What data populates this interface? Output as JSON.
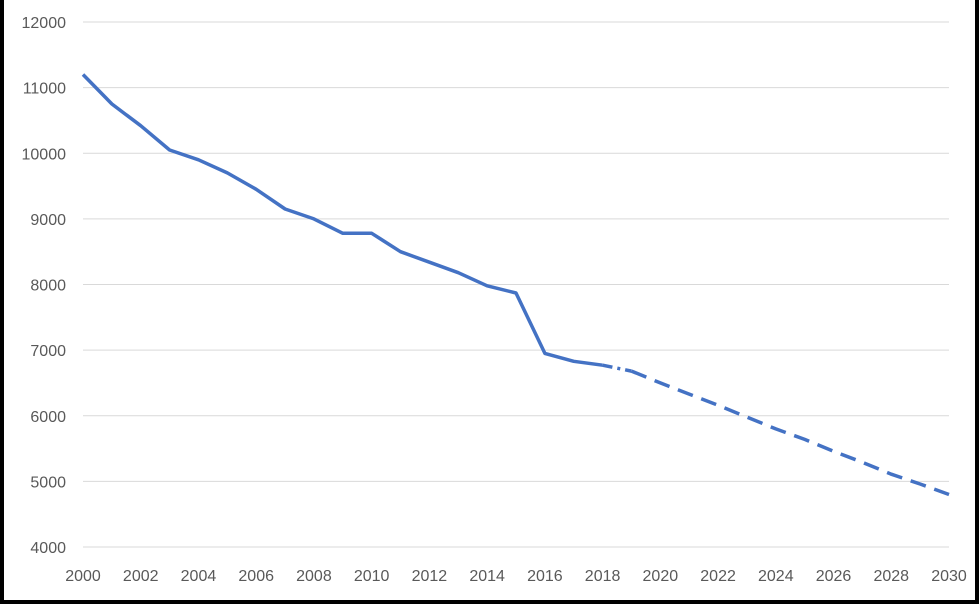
{
  "chart_data": {
    "type": "line",
    "title": "",
    "xlabel": "",
    "ylabel": "",
    "xlim": [
      2000,
      2030
    ],
    "ylim": [
      4000,
      12000
    ],
    "x_ticks": [
      "2000",
      "2002",
      "2004",
      "2006",
      "2008",
      "2010",
      "2012",
      "2014",
      "2016",
      "2018",
      "2020",
      "2022",
      "2024",
      "2026",
      "2028",
      "2030"
    ],
    "y_ticks": [
      "4000",
      "5000",
      "6000",
      "7000",
      "8000",
      "9000",
      "10000",
      "11000",
      "12000"
    ],
    "grid": "horizontal",
    "legend": "none",
    "color": "#4472c4",
    "series": [
      {
        "style": "solid",
        "x": [
          2000,
          2001,
          2002,
          2003,
          2004,
          2005,
          2006,
          2007,
          2008,
          2009,
          2010,
          2011,
          2012,
          2013,
          2014,
          2015,
          2016,
          2017,
          2018
        ],
        "values": [
          11200,
          10750,
          10420,
          10050,
          9900,
          9700,
          9450,
          9150,
          9000,
          8780,
          8780,
          8500,
          8340,
          8180,
          7980,
          7870,
          6950,
          6830,
          6770
        ]
      },
      {
        "style": "dash-dot",
        "x": [
          2018,
          2019
        ],
        "values": [
          6770,
          6680
        ]
      },
      {
        "style": "dashed",
        "x": [
          2019,
          2020,
          2021,
          2022,
          2023,
          2024,
          2025,
          2026,
          2027,
          2028,
          2029,
          2030
        ],
        "values": [
          6680,
          6500,
          6330,
          6160,
          5980,
          5800,
          5640,
          5460,
          5290,
          5110,
          4960,
          4800
        ]
      }
    ]
  }
}
